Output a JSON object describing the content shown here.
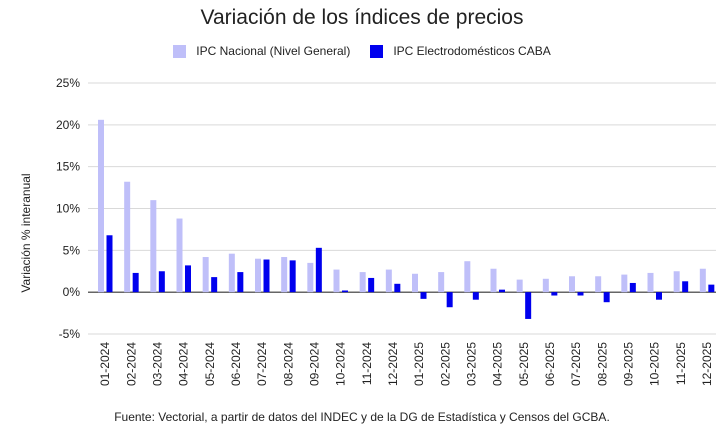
{
  "colors": {
    "nacional": "#bfbff9",
    "caba": "#0000ee",
    "grid": "#d9d9d9",
    "zero_line": "#333333"
  },
  "legend": {
    "nacional": "IPC Nacional (Nivel General)",
    "caba": "IPC Electrodomésticos CABA"
  },
  "source": "Fuente: Vectorial, a partir de datos del INDEC y de la DG de Estadística y Censos del GCBA.",
  "chart_data": {
    "type": "bar",
    "title": "Variación de los índices de precios",
    "xlabel": "",
    "ylabel": "Variación % interanual",
    "ylim": [
      -5,
      25
    ],
    "yticks": [
      -5,
      0,
      5,
      10,
      15,
      20,
      25
    ],
    "ytick_labels": [
      "-5%",
      "0%",
      "5%",
      "10%",
      "15%",
      "20%",
      "25%"
    ],
    "grid": true,
    "legend_position": "top",
    "categories": [
      "01-2024",
      "02-2024",
      "03-2024",
      "04-2024",
      "05-2024",
      "06-2024",
      "07-2024",
      "08-2024",
      "09-2024",
      "10-2024",
      "11-2024",
      "12-2024",
      "01-2025",
      "02-2025",
      "03-2025",
      "04-2025",
      "05-2025",
      "06-2025",
      "07-2025",
      "08-2025",
      "09-2025",
      "10-2025",
      "11-2025",
      "12-2025"
    ],
    "series": [
      {
        "name": "IPC Nacional (Nivel General)",
        "values": [
          20.6,
          13.2,
          11.0,
          8.8,
          4.2,
          4.6,
          4.0,
          4.2,
          3.5,
          2.7,
          2.4,
          2.7,
          2.2,
          2.4,
          3.7,
          2.8,
          1.5,
          1.6,
          1.9,
          1.9,
          2.1,
          2.3,
          2.5,
          2.8
        ]
      },
      {
        "name": "IPC Electrodomésticos CABA",
        "values": [
          6.8,
          2.3,
          2.5,
          3.2,
          1.8,
          2.4,
          3.9,
          3.8,
          5.3,
          0.2,
          1.7,
          1.0,
          -0.8,
          -1.8,
          -0.9,
          0.3,
          -3.2,
          -0.4,
          -0.4,
          -1.2,
          1.1,
          -0.9,
          1.3,
          0.9
        ]
      }
    ]
  }
}
